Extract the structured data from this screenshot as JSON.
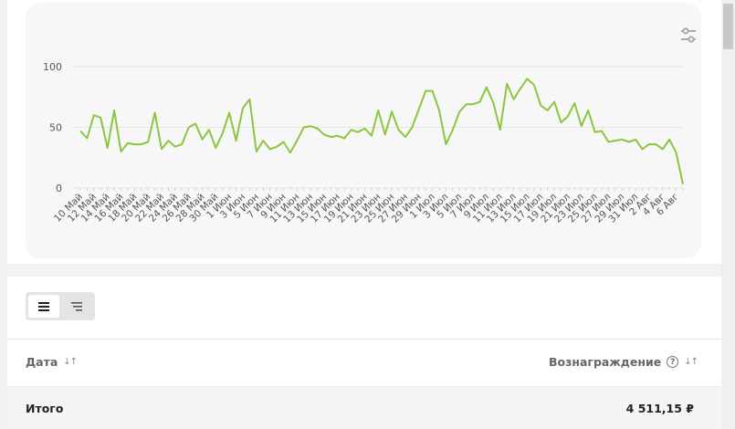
{
  "chart_data": {
    "type": "line",
    "ylim": [
      0,
      100
    ],
    "yticks": [
      "0",
      "50",
      "100"
    ],
    "x_labels": [
      "10 Май",
      "12 Май",
      "14 Май",
      "16 Май",
      "18 Май",
      "20 Май",
      "22 Май",
      "24 Май",
      "26 Май",
      "28 Май",
      "30 Май",
      "1 Июн",
      "3 Июн",
      "5 Июн",
      "7 Июн",
      "9 Июн",
      "11 Июн",
      "13 Июн",
      "15 Июн",
      "17 Июн",
      "19 Июн",
      "21 Июн",
      "23 Июн",
      "25 Июн",
      "27 Июн",
      "29 Июн",
      "1 Июл",
      "3 Июл",
      "5 Июл",
      "7 Июл",
      "9 Июл",
      "11 Июл",
      "13 Июл",
      "15 Июл",
      "17 Июл",
      "19 Июл",
      "21 Июл",
      "23 Июл",
      "25 Июл",
      "27 Июл",
      "29 Июл",
      "31 Июл",
      "2 Авг",
      "4 Авг",
      "6 Авг"
    ],
    "series": [
      {
        "color": "#8cc63f",
        "values": [
          47,
          41,
          60,
          58,
          33,
          64,
          30,
          37,
          36,
          36,
          38,
          62,
          32,
          39,
          34,
          36,
          50,
          53,
          40,
          48,
          33,
          45,
          62,
          39,
          66,
          73,
          30,
          39,
          32,
          34,
          38,
          29,
          39,
          50,
          51,
          49,
          44,
          42,
          43,
          41,
          48,
          46,
          49,
          43,
          64,
          44,
          63,
          48,
          42,
          50,
          65,
          80,
          80,
          64,
          36,
          48,
          63,
          69,
          69,
          71,
          83,
          70,
          48,
          86,
          73,
          82,
          90,
          85,
          68,
          64,
          71,
          54,
          59,
          70,
          51,
          64,
          46,
          47,
          38,
          39,
          40,
          38,
          40,
          32,
          36,
          36,
          32,
          40,
          29,
          3
        ]
      }
    ]
  },
  "chart_toolbar": {
    "filter_icon": "sliders-icon"
  },
  "view_toggle": {
    "options": [
      "list-view-icon",
      "tree-view-icon"
    ],
    "active": 0
  },
  "table": {
    "columns": [
      {
        "label": "Дата",
        "sort_icon": "↓↑"
      },
      {
        "label": "Вознаграждение",
        "help": "?",
        "sort_icon": "↓↑"
      }
    ],
    "total": {
      "label": "Итого",
      "value": "4 511,15 ₽"
    }
  },
  "colors": {
    "line": "#8cc63f",
    "grid": "#e6e6e6",
    "card": "#f7f7f7"
  }
}
